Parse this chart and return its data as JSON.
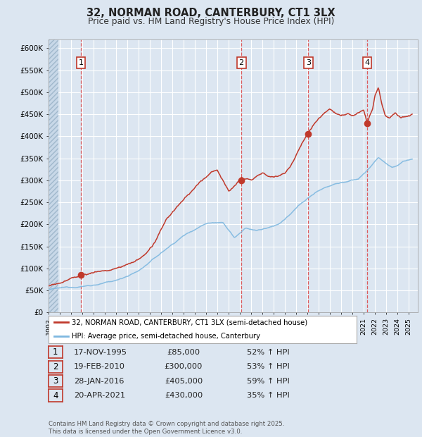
{
  "title": "32, NORMAN ROAD, CANTERBURY, CT1 3LX",
  "subtitle": "Price paid vs. HM Land Registry's House Price Index (HPI)",
  "bg_color": "#dce6f1",
  "sale_color": "#c0392b",
  "hpi_color": "#7eb8e0",
  "ylim": [
    0,
    620000
  ],
  "yticks": [
    0,
    50000,
    100000,
    150000,
    200000,
    250000,
    300000,
    350000,
    400000,
    450000,
    500000,
    550000,
    600000
  ],
  "xlim_start": 1993.0,
  "xlim_end": 2025.8,
  "sales": [
    {
      "date": 1995.88,
      "price": 85000,
      "label": "1"
    },
    {
      "date": 2010.13,
      "price": 300000,
      "label": "2"
    },
    {
      "date": 2016.08,
      "price": 405000,
      "label": "3"
    },
    {
      "date": 2021.3,
      "price": 430000,
      "label": "4"
    }
  ],
  "legend_sale_label": "32, NORMAN ROAD, CANTERBURY, CT1 3LX (semi-detached house)",
  "legend_hpi_label": "HPI: Average price, semi-detached house, Canterbury",
  "table_rows": [
    {
      "num": "1",
      "date": "17-NOV-1995",
      "price": "£85,000",
      "hpi": "52% ↑ HPI"
    },
    {
      "num": "2",
      "date": "19-FEB-2010",
      "price": "£300,000",
      "hpi": "53% ↑ HPI"
    },
    {
      "num": "3",
      "date": "28-JAN-2016",
      "price": "£405,000",
      "hpi": "59% ↑ HPI"
    },
    {
      "num": "4",
      "date": "20-APR-2021",
      "price": "£430,000",
      "hpi": "35% ↑ HPI"
    }
  ],
  "footnote": "Contains HM Land Registry data © Crown copyright and database right 2025.\nThis data is licensed under the Open Government Licence v3.0."
}
